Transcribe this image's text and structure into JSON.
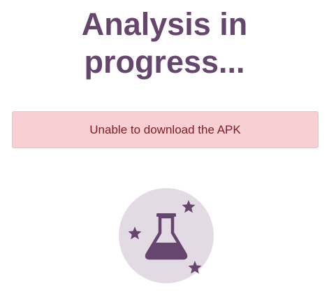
{
  "page": {
    "title_line1": "Analysis in",
    "title_line2": "progress..."
  },
  "alert": {
    "message": "Unable to download the APK",
    "color": "#f8d0d3"
  },
  "illustration": {
    "icon": "lab-flask-icon",
    "accent": "#66466f",
    "background": "#e2dbe3"
  }
}
